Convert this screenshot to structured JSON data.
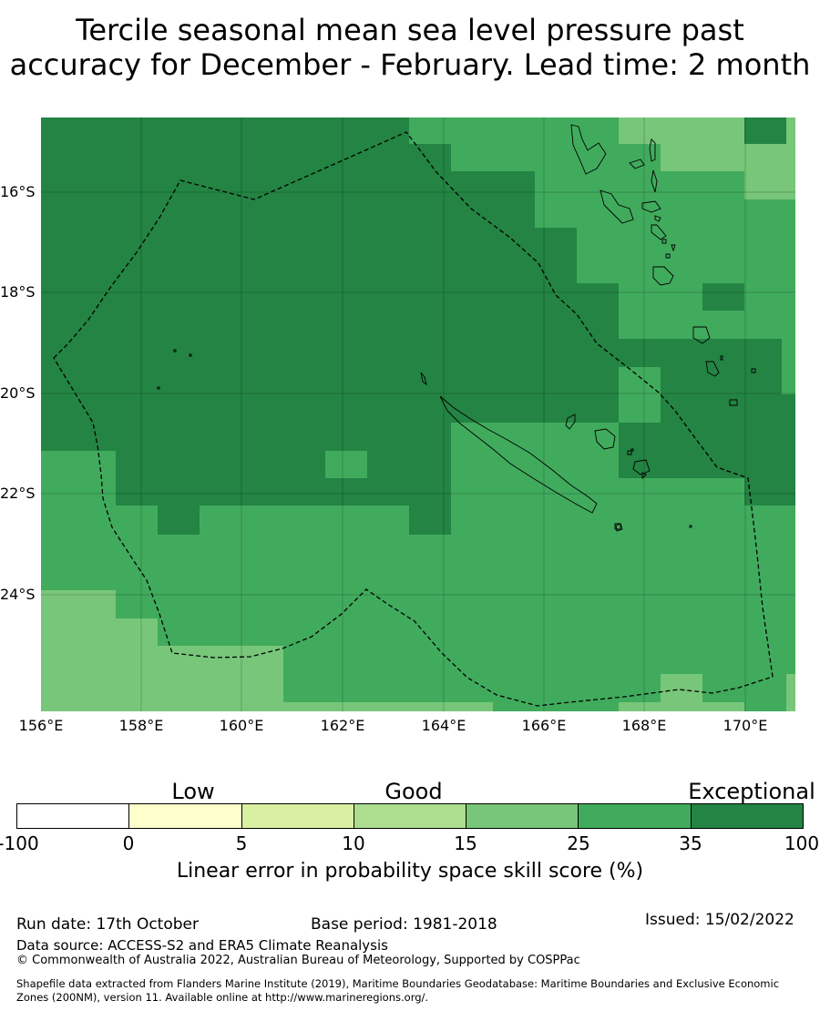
{
  "title_line1": "Tercile seasonal mean sea level pressure past",
  "title_line2": "accuracy for December - February. Lead time: 2 month",
  "map": {
    "lat_labels": [
      "16°S",
      "18°S",
      "20°S",
      "22°S",
      "24°S"
    ],
    "lon_labels": [
      "156°E",
      "158°E",
      "160°E",
      "162°E",
      "164°E",
      "166°E",
      "168°E",
      "170°E"
    ],
    "region_boundary": "maritime boundary (dashed)",
    "colors": {
      "c35_100": "#238443",
      "c25_35": "#41ab5d",
      "c15_25": "#78c679",
      "c10_15": "#addd8e",
      "c5_10": "#d9f0a3",
      "c0_5": "#ffffcc",
      "below0": "#ffffff",
      "land_outline": "#000000"
    }
  },
  "colorbar": {
    "category_labels": [
      "Low",
      "Good",
      "Exceptional"
    ],
    "ticks": [
      "-100",
      "0",
      "5",
      "10",
      "15",
      "25",
      "35",
      "100"
    ],
    "colors": [
      "#ffffff",
      "#ffffcc",
      "#d9f0a3",
      "#addd8e",
      "#78c679",
      "#41ab5d",
      "#238443"
    ],
    "title": "Linear error in probability space skill score (%)"
  },
  "footer": {
    "run_date": "Run date: 17th October",
    "base_period": "Base period: 1981-2018",
    "issued": "Issued: 15/02/2022",
    "data_source": "Data source: ACCESS-S2 and ERA5 Climate Reanalysis",
    "copyright": "© Commonwealth of Australia 2022, Australian Bureau of Meteorology, Supported by COSPPac",
    "shapefile_line1": "Shapefile data extracted from Flanders Marine Institute (2019), Maritime Boundaries Geodatabase: Maritime Boundaries and Exclusive Economic",
    "shapefile_line2": "Zones (200NM), version 11. Available online at http://www.marineregions.org/."
  }
}
